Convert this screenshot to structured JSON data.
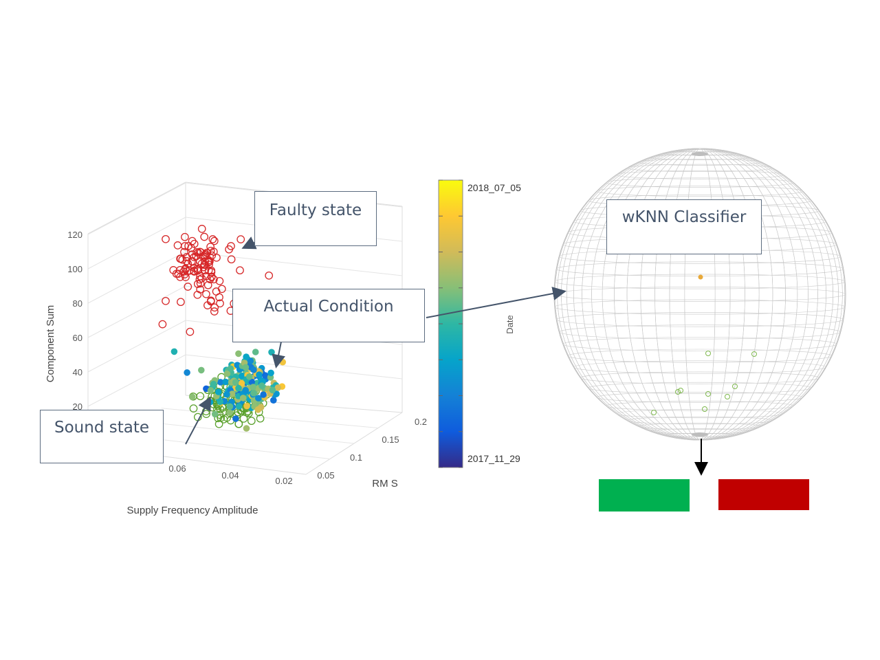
{
  "chart_data": {
    "type": "scatter",
    "projection": "3d",
    "axes": {
      "x": {
        "label": "Supply Frequency Amplitude",
        "ticks": [
          "0.06",
          "0.04",
          "0.02"
        ]
      },
      "y": {
        "label": "RM S",
        "ticks": [
          "0.05",
          "0.1",
          "0.15",
          "0.2"
        ]
      },
      "z": {
        "label": "Component Sum",
        "ticks": [
          "20",
          "40",
          "60",
          "80",
          "100",
          "120"
        ],
        "range": [
          20,
          120
        ]
      }
    },
    "clusters": [
      {
        "name": "Faulty state",
        "marker": "open-circle",
        "color": "#d62728",
        "count": 110,
        "z_range": [
          75,
          122
        ]
      },
      {
        "name": "Sound state",
        "marker": "open-circle",
        "color": "#5aa02c",
        "count": 90,
        "z_range": [
          14,
          38
        ]
      },
      {
        "name": "Actual Condition",
        "marker": "filled-circle",
        "colormap": "parula",
        "count": 170,
        "z_range": [
          25,
          62
        ]
      }
    ],
    "colorbar": {
      "label": "Date",
      "min_label": "2017_11_29",
      "max_label": "2018_07_05",
      "colors": [
        "#352a87",
        "#0f5cdd",
        "#1481d6",
        "#06a4ca",
        "#2eb7a4",
        "#87bf77",
        "#d1bb59",
        "#fec832",
        "#f9fb0e"
      ]
    }
  },
  "annotations": {
    "faulty": "Faulty state",
    "actual": "Actual Condition",
    "sound": "Sound state",
    "classifier": "wKNN Classifier"
  },
  "classifier_sphere": {
    "highlight_point_color": "#e8a93a",
    "point_color": "#7fb84e"
  },
  "result_boxes": {
    "healthy_color": "#00b050",
    "faulty_color": "#c00000"
  }
}
